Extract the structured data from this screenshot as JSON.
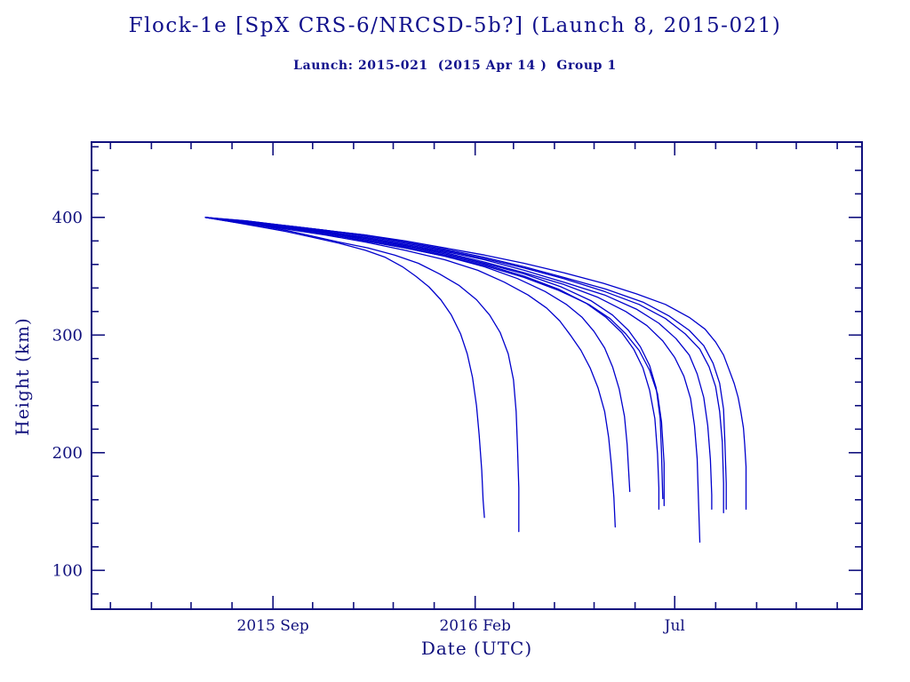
{
  "header": {
    "title": "Flock-1e [SpX CRS-6/NRCSD-5b?] (Launch 8, 2015-021)",
    "subtitle": "Launch: 2015-021  (2015 Apr 14 )  Group 1"
  },
  "chart_data": {
    "type": "line",
    "title": "Flock-1e [SpX CRS-6/NRCSD-5b?] (Launch 8, 2015-021)",
    "subtitle": "Launch: 2015-021  (2015 Apr 14 )  Group 1",
    "xlabel": "Date (UTC)",
    "ylabel": "Height (km)",
    "x_epoch": "2015-04-14",
    "x_unit": "days since launch 2015-04-14",
    "xlim_days": [
      2.7,
      585.8
    ],
    "ylim": [
      67,
      464
    ],
    "grid": false,
    "legend": "none",
    "colors": {
      "line": "#0000cc",
      "frame": "#10107d",
      "text": "#10107d"
    },
    "x_ticks_major": [
      {
        "date": "2015-09-01",
        "label": "2015 Sep"
      },
      {
        "date": "2016-02-01",
        "label": "2016 Feb"
      },
      {
        "date": "2016-07-01",
        "label": "Jul"
      }
    ],
    "x_ticks_minor_dates": [
      "2015-05-01",
      "2015-06-01",
      "2015-07-01",
      "2015-08-01",
      "2015-10-01",
      "2015-11-01",
      "2015-12-01",
      "2016-01-01",
      "2016-03-01",
      "2016-04-01",
      "2016-05-01",
      "2016-06-01",
      "2016-08-01",
      "2016-09-01",
      "2016-10-01",
      "2016-11-01"
    ],
    "y_ticks_major": [
      {
        "km": 100,
        "label": "100"
      },
      {
        "km": 200,
        "label": "200"
      },
      {
        "km": 300,
        "label": "300"
      },
      {
        "km": 400,
        "label": "400"
      }
    ],
    "y_ticks_minor_km": [
      80,
      120,
      140,
      160,
      180,
      220,
      240,
      260,
      280,
      320,
      340,
      360,
      380,
      420,
      440,
      460
    ],
    "series": [
      {
        "points": [
          [
            89,
            400
          ],
          [
            110,
            396
          ],
          [
            130,
            392
          ],
          [
            150,
            388
          ],
          [
            170,
            383
          ],
          [
            190,
            378
          ],
          [
            210,
            372
          ],
          [
            225,
            366
          ],
          [
            238,
            358
          ],
          [
            248,
            350
          ],
          [
            258,
            341
          ],
          [
            267,
            330
          ],
          [
            275,
            317
          ],
          [
            282,
            301
          ],
          [
            287,
            284
          ],
          [
            291,
            264
          ],
          [
            294,
            240
          ],
          [
            296,
            215
          ],
          [
            298,
            185
          ],
          [
            299,
            160
          ],
          [
            300,
            145
          ]
        ]
      },
      {
        "points": [
          [
            89,
            400
          ],
          [
            110,
            396
          ],
          [
            130,
            393
          ],
          [
            150,
            389
          ],
          [
            170,
            384
          ],
          [
            190,
            379
          ],
          [
            212,
            374
          ],
          [
            232,
            368
          ],
          [
            250,
            361
          ],
          [
            266,
            352
          ],
          [
            281,
            342
          ],
          [
            294,
            330
          ],
          [
            304,
            317
          ],
          [
            312,
            302
          ],
          [
            318,
            284
          ],
          [
            322,
            262
          ],
          [
            324,
            235
          ],
          [
            325,
            205
          ],
          [
            326,
            170
          ],
          [
            326,
            133
          ]
        ]
      },
      {
        "points": [
          [
            89,
            400
          ],
          [
            120,
            395
          ],
          [
            150,
            390
          ],
          [
            180,
            385
          ],
          [
            210,
            379
          ],
          [
            240,
            372
          ],
          [
            270,
            364
          ],
          [
            295,
            355
          ],
          [
            315,
            345
          ],
          [
            333,
            334
          ],
          [
            347,
            323
          ],
          [
            357,
            312
          ],
          [
            365,
            300
          ],
          [
            373,
            287
          ],
          [
            380,
            272
          ],
          [
            386,
            255
          ],
          [
            391,
            235
          ],
          [
            394,
            213
          ],
          [
            396,
            190
          ],
          [
            398,
            162
          ],
          [
            399,
            137
          ]
        ]
      },
      {
        "points": [
          [
            89,
            400
          ],
          [
            120,
            395
          ],
          [
            150,
            391
          ],
          [
            180,
            386
          ],
          [
            210,
            380
          ],
          [
            240,
            374
          ],
          [
            270,
            367
          ],
          [
            300,
            358
          ],
          [
            325,
            348
          ],
          [
            346,
            337
          ],
          [
            362,
            326
          ],
          [
            374,
            315
          ],
          [
            383,
            303
          ],
          [
            391,
            289
          ],
          [
            397,
            273
          ],
          [
            402,
            254
          ],
          [
            406,
            231
          ],
          [
            408,
            207
          ],
          [
            409,
            187
          ],
          [
            410,
            167
          ]
        ]
      },
      {
        "points": [
          [
            89,
            400
          ],
          [
            120,
            396
          ],
          [
            150,
            391
          ],
          [
            180,
            387
          ],
          [
            210,
            381
          ],
          [
            240,
            375
          ],
          [
            270,
            368
          ],
          [
            300,
            360
          ],
          [
            330,
            350
          ],
          [
            356,
            339
          ],
          [
            377,
            327
          ],
          [
            392,
            315
          ],
          [
            404,
            302
          ],
          [
            413,
            288
          ],
          [
            420,
            272
          ],
          [
            425,
            253
          ],
          [
            429,
            229
          ],
          [
            431,
            199
          ],
          [
            432,
            170
          ],
          [
            432,
            152
          ]
        ]
      },
      {
        "points": [
          [
            89,
            400
          ],
          [
            120,
            396
          ],
          [
            150,
            392
          ],
          [
            180,
            387
          ],
          [
            210,
            382
          ],
          [
            240,
            376
          ],
          [
            270,
            369
          ],
          [
            300,
            361
          ],
          [
            330,
            352
          ],
          [
            358,
            341
          ],
          [
            381,
            329
          ],
          [
            397,
            317
          ],
          [
            409,
            304
          ],
          [
            418,
            290
          ],
          [
            425,
            274
          ],
          [
            430,
            255
          ],
          [
            433,
            229
          ],
          [
            434,
            199
          ],
          [
            435,
            161
          ]
        ]
      },
      {
        "points": [
          [
            89,
            400
          ],
          [
            120,
            395
          ],
          [
            150,
            391
          ],
          [
            180,
            386
          ],
          [
            210,
            380
          ],
          [
            240,
            374
          ],
          [
            270,
            367
          ],
          [
            300,
            359
          ],
          [
            330,
            349
          ],
          [
            356,
            338
          ],
          [
            379,
            326
          ],
          [
            395,
            314
          ],
          [
            407,
            301
          ],
          [
            417,
            287
          ],
          [
            425,
            270
          ],
          [
            431,
            250
          ],
          [
            434,
            226
          ],
          [
            436,
            191
          ],
          [
            436,
            155
          ]
        ]
      },
      {
        "points": [
          [
            89,
            400
          ],
          [
            120,
            396
          ],
          [
            150,
            392
          ],
          [
            180,
            388
          ],
          [
            210,
            382
          ],
          [
            240,
            376
          ],
          [
            270,
            370
          ],
          [
            300,
            362
          ],
          [
            330,
            353
          ],
          [
            360,
            343
          ],
          [
            386,
            332
          ],
          [
            407,
            320
          ],
          [
            423,
            308
          ],
          [
            435,
            295
          ],
          [
            444,
            281
          ],
          [
            451,
            265
          ],
          [
            456,
            246
          ],
          [
            459,
            223
          ],
          [
            461,
            195
          ],
          [
            462,
            159
          ],
          [
            463,
            124
          ]
        ]
      },
      {
        "points": [
          [
            89,
            400
          ],
          [
            120,
            396
          ],
          [
            150,
            392
          ],
          [
            180,
            388
          ],
          [
            210,
            383
          ],
          [
            240,
            377
          ],
          [
            270,
            371
          ],
          [
            300,
            364
          ],
          [
            330,
            355
          ],
          [
            360,
            345
          ],
          [
            391,
            334
          ],
          [
            415,
            322
          ],
          [
            432,
            310
          ],
          [
            445,
            297
          ],
          [
            455,
            283
          ],
          [
            461,
            267
          ],
          [
            466,
            247
          ],
          [
            469,
            223
          ],
          [
            471,
            194
          ],
          [
            472,
            164
          ],
          [
            472,
            152
          ]
        ]
      },
      {
        "points": [
          [
            89,
            400
          ],
          [
            120,
            396
          ],
          [
            150,
            393
          ],
          [
            180,
            389
          ],
          [
            210,
            384
          ],
          [
            240,
            378
          ],
          [
            270,
            372
          ],
          [
            300,
            365
          ],
          [
            330,
            357
          ],
          [
            360,
            348
          ],
          [
            391,
            337
          ],
          [
            417,
            326
          ],
          [
            437,
            314
          ],
          [
            452,
            301
          ],
          [
            463,
            288
          ],
          [
            470,
            273
          ],
          [
            475,
            256
          ],
          [
            478,
            235
          ],
          [
            480,
            209
          ],
          [
            481,
            174
          ],
          [
            481,
            149
          ]
        ]
      },
      {
        "points": [
          [
            89,
            400
          ],
          [
            120,
            397
          ],
          [
            150,
            393
          ],
          [
            180,
            389
          ],
          [
            210,
            385
          ],
          [
            240,
            379
          ],
          [
            270,
            373
          ],
          [
            300,
            366
          ],
          [
            330,
            358
          ],
          [
            360,
            349
          ],
          [
            392,
            339
          ],
          [
            420,
            328
          ],
          [
            440,
            316
          ],
          [
            455,
            304
          ],
          [
            466,
            291
          ],
          [
            473,
            276
          ],
          [
            478,
            259
          ],
          [
            481,
            237
          ],
          [
            482,
            209
          ],
          [
            483,
            174
          ],
          [
            483,
            152
          ]
        ]
      },
      {
        "points": [
          [
            89,
            400
          ],
          [
            120,
            397
          ],
          [
            150,
            393
          ],
          [
            180,
            389
          ],
          [
            210,
            385
          ],
          [
            240,
            380
          ],
          [
            270,
            374
          ],
          [
            300,
            368
          ],
          [
            330,
            361
          ],
          [
            360,
            353
          ],
          [
            390,
            344
          ],
          [
            415,
            335
          ],
          [
            437,
            326
          ],
          [
            455,
            315
          ],
          [
            467,
            305
          ],
          [
            475,
            294
          ],
          [
            481,
            283
          ],
          [
            485,
            271
          ],
          [
            489,
            259
          ],
          [
            492,
            247
          ],
          [
            494,
            235
          ],
          [
            496,
            221
          ],
          [
            497,
            207
          ],
          [
            498,
            188
          ],
          [
            498,
            152
          ]
        ]
      }
    ]
  }
}
